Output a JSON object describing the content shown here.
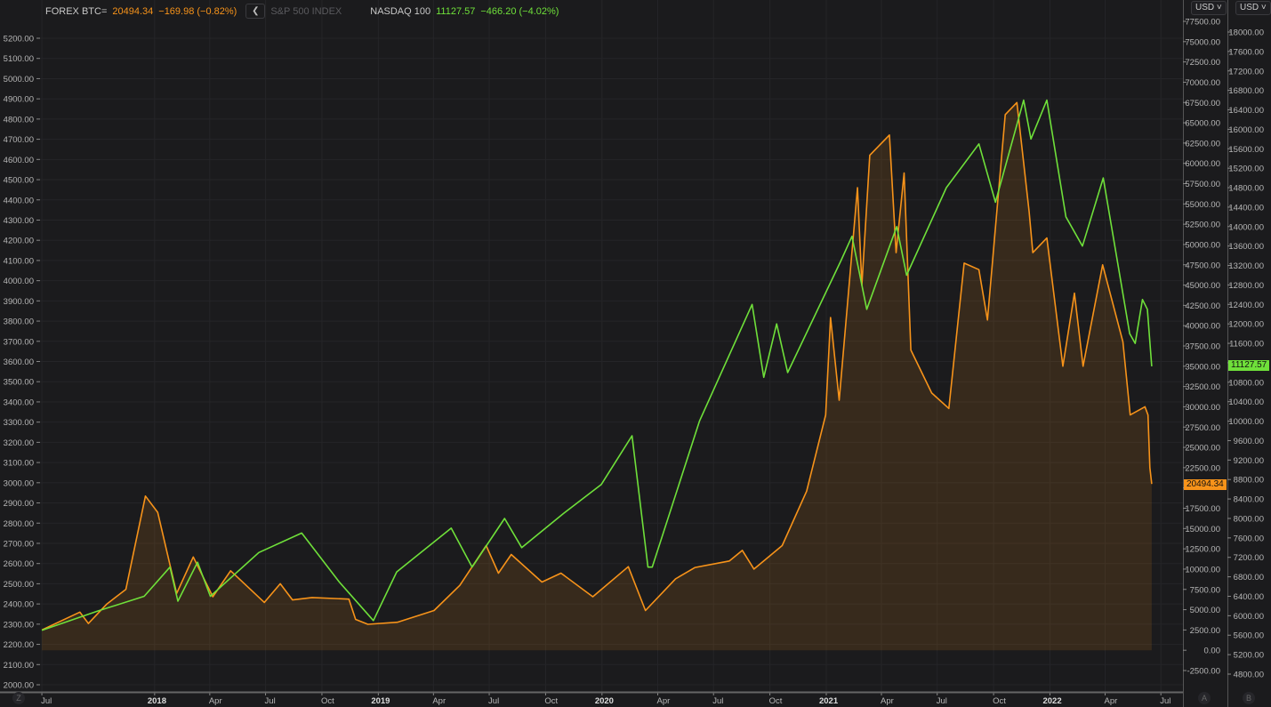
{
  "legend": {
    "btc": {
      "name": "FOREX BTC=",
      "price": "20494.34",
      "change": "−169.98 (−0.82%)"
    },
    "collapse_icon": "chevron-left-icon",
    "sp500": {
      "name": "S&P 500 INDEX"
    },
    "ndx": {
      "name": "NASDAQ 100",
      "price": "11127.57",
      "change": "−466.20 (−4.02%)"
    }
  },
  "currency_buttons": [
    "USD",
    "USD"
  ],
  "corner_buttons": {
    "left": "Z",
    "a": "A",
    "b": "B"
  },
  "price_badges": {
    "btc": "20494.34",
    "ndx": "11127.57"
  },
  "colors": {
    "btc": "#f7931a",
    "ndx": "#6fe03a",
    "background": "#1b1b1d",
    "grid": "#2a2a2e"
  },
  "chart_data": {
    "type": "line",
    "grid": true,
    "x_ticks": [
      [
        "2017-07-01",
        "Jul"
      ],
      [
        "2018-01-01",
        "2018"
      ],
      [
        "2018-04-01",
        "Apr"
      ],
      [
        "2018-07-01",
        "Jul"
      ],
      [
        "2018-10-01",
        "Oct"
      ],
      [
        "2019-01-01",
        "2019"
      ],
      [
        "2019-04-01",
        "Apr"
      ],
      [
        "2019-07-01",
        "Jul"
      ],
      [
        "2019-10-01",
        "Oct"
      ],
      [
        "2020-01-01",
        "2020"
      ],
      [
        "2020-04-01",
        "Apr"
      ],
      [
        "2020-07-01",
        "Jul"
      ],
      [
        "2020-10-01",
        "Oct"
      ],
      [
        "2021-01-01",
        "2021"
      ],
      [
        "2021-04-01",
        "Apr"
      ],
      [
        "2021-07-01",
        "Jul"
      ],
      [
        "2021-10-01",
        "Oct"
      ],
      [
        "2022-01-01",
        "2022"
      ],
      [
        "2022-04-01",
        "Apr"
      ],
      [
        "2022-07-01",
        "Jul"
      ]
    ],
    "xlim": [
      "2017-06-28",
      "2022-08-06"
    ],
    "axes": {
      "left": {
        "ylim": [
          2000,
          5200
        ],
        "step": 100,
        "series": "S&P 500 INDEX"
      },
      "btc": {
        "ylim": [
          -2500,
          77500
        ],
        "step": 2500
      },
      "ndx": {
        "ylim": [
          4800,
          18000
        ],
        "step": 400
      }
    },
    "series": [
      {
        "name": "FOREX BTC=",
        "axis": "btc",
        "color": "#f7931a",
        "area": true,
        "points": [
          [
            "2017-07-01",
            2500
          ],
          [
            "2017-09-01",
            4700
          ],
          [
            "2017-09-15",
            3300
          ],
          [
            "2017-10-15",
            5700
          ],
          [
            "2017-11-15",
            7500
          ],
          [
            "2017-12-17",
            19000
          ],
          [
            "2018-01-06",
            17000
          ],
          [
            "2018-02-06",
            7000
          ],
          [
            "2018-03-05",
            11500
          ],
          [
            "2018-04-06",
            6600
          ],
          [
            "2018-05-05",
            9800
          ],
          [
            "2018-06-29",
            5900
          ],
          [
            "2018-07-25",
            8200
          ],
          [
            "2018-08-14",
            6200
          ],
          [
            "2018-09-15",
            6500
          ],
          [
            "2018-11-14",
            6300
          ],
          [
            "2018-11-25",
            3800
          ],
          [
            "2018-12-15",
            3200
          ],
          [
            "2019-02-01",
            3450
          ],
          [
            "2019-04-02",
            4900
          ],
          [
            "2019-05-14",
            8000
          ],
          [
            "2019-06-26",
            12900
          ],
          [
            "2019-07-16",
            9500
          ],
          [
            "2019-08-06",
            11800
          ],
          [
            "2019-09-25",
            8400
          ],
          [
            "2019-10-26",
            9500
          ],
          [
            "2019-12-17",
            6600
          ],
          [
            "2020-02-13",
            10300
          ],
          [
            "2020-03-12",
            4900
          ],
          [
            "2020-04-30",
            8800
          ],
          [
            "2020-06-01",
            10200
          ],
          [
            "2020-07-27",
            11000
          ],
          [
            "2020-08-17",
            12300
          ],
          [
            "2020-09-05",
            10000
          ],
          [
            "2020-10-21",
            12900
          ],
          [
            "2020-11-30",
            19600
          ],
          [
            "2020-12-31",
            29000
          ],
          [
            "2021-01-08",
            41000
          ],
          [
            "2021-01-22",
            30800
          ],
          [
            "2021-02-21",
            57000
          ],
          [
            "2021-02-28",
            45000
          ],
          [
            "2021-03-13",
            61000
          ],
          [
            "2021-04-14",
            63500
          ],
          [
            "2021-04-25",
            49000
          ],
          [
            "2021-05-08",
            58800
          ],
          [
            "2021-05-19",
            37000
          ],
          [
            "2021-06-22",
            31700
          ],
          [
            "2021-07-20",
            29800
          ],
          [
            "2021-08-14",
            47700
          ],
          [
            "2021-09-07",
            46900
          ],
          [
            "2021-09-21",
            40700
          ],
          [
            "2021-10-20",
            66000
          ],
          [
            "2021-11-08",
            67500
          ],
          [
            "2021-11-28",
            54000
          ],
          [
            "2021-12-04",
            49000
          ],
          [
            "2021-12-27",
            50800
          ],
          [
            "2022-01-22",
            35000
          ],
          [
            "2022-02-10",
            44000
          ],
          [
            "2022-02-24",
            35000
          ],
          [
            "2022-03-28",
            47500
          ],
          [
            "2022-04-30",
            38000
          ],
          [
            "2022-05-12",
            29000
          ],
          [
            "2022-06-05",
            30000
          ],
          [
            "2022-06-10",
            29000
          ],
          [
            "2022-06-13",
            22500
          ],
          [
            "2022-06-16",
            20494
          ]
        ]
      },
      {
        "name": "NASDAQ 100",
        "axis": "ndx",
        "color": "#6fe03a",
        "area": false,
        "points": [
          [
            "2017-07-01",
            5700
          ],
          [
            "2017-10-01",
            6100
          ],
          [
            "2017-12-15",
            6400
          ],
          [
            "2018-01-26",
            7000
          ],
          [
            "2018-02-08",
            6300
          ],
          [
            "2018-03-12",
            7100
          ],
          [
            "2018-04-02",
            6400
          ],
          [
            "2018-06-20",
            7300
          ],
          [
            "2018-08-29",
            7700
          ],
          [
            "2018-10-29",
            6700
          ],
          [
            "2018-12-24",
            5900
          ],
          [
            "2019-01-31",
            6900
          ],
          [
            "2019-04-30",
            7800
          ],
          [
            "2019-06-03",
            7000
          ],
          [
            "2019-07-26",
            8000
          ],
          [
            "2019-08-23",
            7400
          ],
          [
            "2019-10-30",
            8100
          ],
          [
            "2019-12-31",
            8700
          ],
          [
            "2020-02-19",
            9700
          ],
          [
            "2020-03-16",
            7000
          ],
          [
            "2020-03-23",
            7000
          ],
          [
            "2020-06-08",
            10000
          ],
          [
            "2020-09-02",
            12400
          ],
          [
            "2020-09-21",
            10900
          ],
          [
            "2020-10-12",
            12000
          ],
          [
            "2020-10-30",
            11000
          ],
          [
            "2021-01-25",
            13300
          ],
          [
            "2021-02-12",
            13800
          ],
          [
            "2021-03-08",
            12300
          ],
          [
            "2021-04-26",
            14000
          ],
          [
            "2021-05-12",
            13000
          ],
          [
            "2021-07-16",
            14800
          ],
          [
            "2021-09-07",
            15700
          ],
          [
            "2021-10-04",
            14500
          ],
          [
            "2021-11-19",
            16600
          ],
          [
            "2021-12-01",
            15800
          ],
          [
            "2021-12-27",
            16600
          ],
          [
            "2022-01-27",
            14200
          ],
          [
            "2022-02-23",
            13600
          ],
          [
            "2022-03-29",
            15000
          ],
          [
            "2022-05-11",
            11800
          ],
          [
            "2022-05-20",
            11600
          ],
          [
            "2022-06-01",
            12500
          ],
          [
            "2022-06-09",
            12300
          ],
          [
            "2022-06-16",
            11128
          ]
        ]
      }
    ]
  }
}
